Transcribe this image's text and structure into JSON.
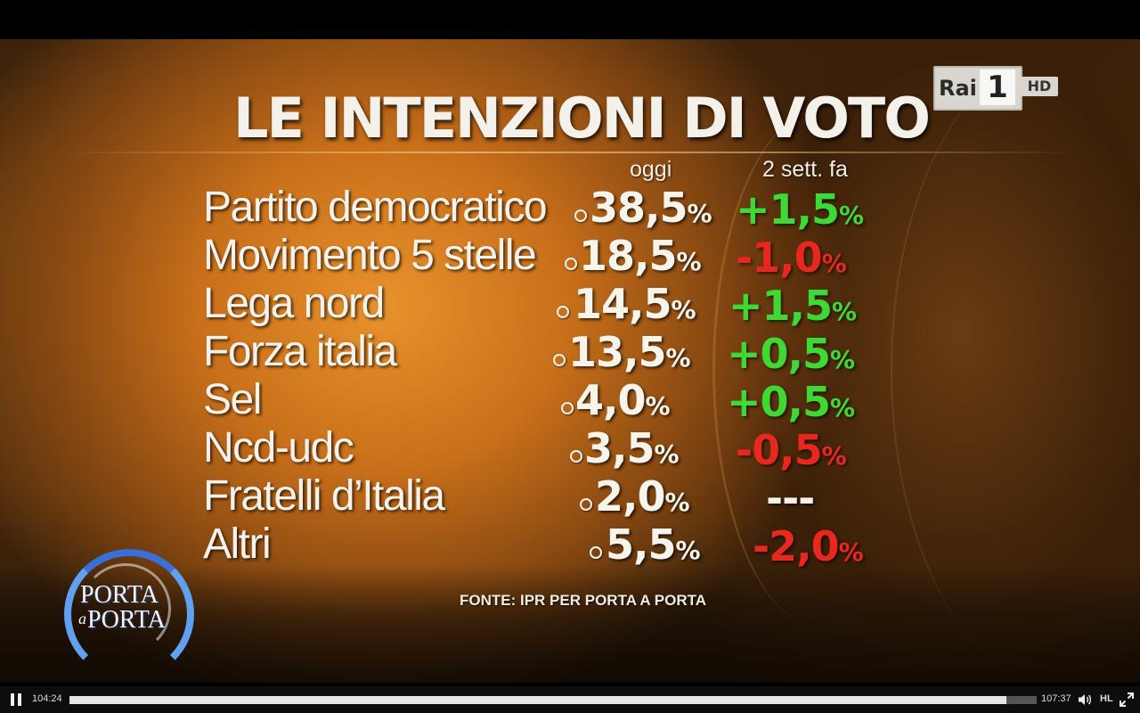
{
  "broadcast": {
    "title": "LE INTENZIONI DI VOTO",
    "channel_logo": {
      "brand": "Rai",
      "number": "1",
      "badge": "HD"
    },
    "columns": {
      "today": "oggi",
      "previous": "2 sett. fa"
    },
    "rows": [
      {
        "party": "Partito democratico",
        "value": "38,5",
        "change": "+1,5",
        "trend": "up"
      },
      {
        "party": "Movimento 5 stelle",
        "value": "18,5",
        "change": "-1,0",
        "trend": "down"
      },
      {
        "party": "Lega nord",
        "value": "14,5",
        "change": "+1,5",
        "trend": "up"
      },
      {
        "party": "Forza italia",
        "value": "13,5",
        "change": "+0,5",
        "trend": "up"
      },
      {
        "party": "Sel",
        "value": "4,0",
        "change": "+0,5",
        "trend": "up"
      },
      {
        "party": "Ncd-udc",
        "value": "3,5",
        "change": "-0,5",
        "trend": "down"
      },
      {
        "party": "Fratelli d’Italia",
        "value": "2,0",
        "change": "---",
        "trend": "none"
      },
      {
        "party": "Altri",
        "value": "5,5",
        "change": "-2,0",
        "trend": "down"
      }
    ],
    "percent_sign": "%",
    "source": "FONTE: IPR PER PORTA A PORTA",
    "show_logo": {
      "line1": "PORTA",
      "a": "a",
      "line2": "PORTA"
    },
    "colors": {
      "up": "#3fd936",
      "down": "#e8281e"
    }
  },
  "player": {
    "current_time": "104:24",
    "total_time": "107:37",
    "progress": 0.969,
    "quality_label": "HL",
    "state": "playing"
  }
}
